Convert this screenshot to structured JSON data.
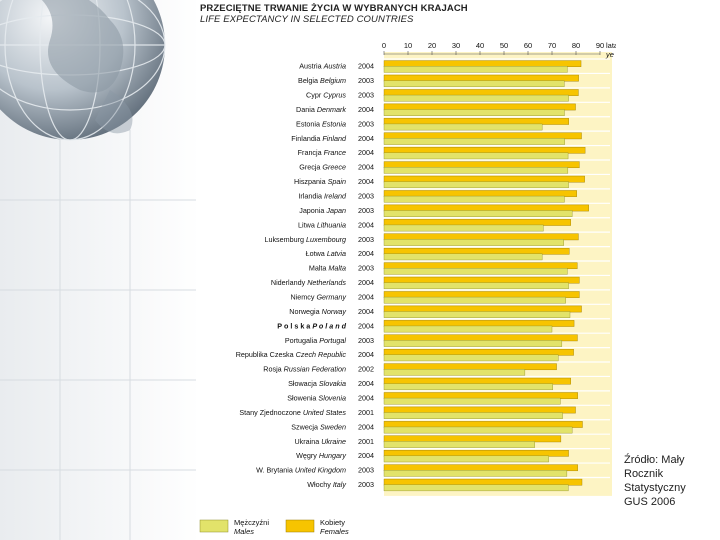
{
  "colors": {
    "males": "#e2e36a",
    "females": "#f7c400",
    "plot_bg": "#fdf4c4",
    "row_bg": "#ffffff"
  },
  "header": {
    "title_pl": "PRZECIĘTNE TRWANIE ŻYCIA W WYBRANYCH KRAJACH",
    "title_en": "LIFE EXPECTANCY IN SELECTED COUNTRIES"
  },
  "source": {
    "line1": "Źródło: Mały",
    "line2": "Rocznik",
    "line3": "Statystyczny",
    "line4": "GUS 2006"
  },
  "chart_data": {
    "type": "bar",
    "orientation": "horizontal",
    "title": "PRZECIĘTNE TRWANIE ŻYCIA W WYBRANYCH KRAJACH / LIFE EXPECTANCY IN SELECTED COUNTRIES",
    "xlim": [
      0,
      90
    ],
    "x_ticks": [
      "0",
      "10",
      "20",
      "30",
      "40",
      "50",
      "60",
      "70",
      "80",
      "90"
    ],
    "x_unit": "lata",
    "x_unit_en": "ye",
    "series_names": [
      "Mężczyźni",
      "Kobiety"
    ],
    "series_names_en": [
      "Males",
      "Females"
    ],
    "countries": [
      {
        "pl": "Austria",
        "en": "Austria",
        "year": "2004",
        "males": 76.4,
        "females": 82.1
      },
      {
        "pl": "Belgia",
        "en": "Belgium",
        "year": "2003",
        "males": 75.1,
        "females": 81.1
      },
      {
        "pl": "Cypr",
        "en": "Cyprus",
        "year": "2003",
        "males": 76.9,
        "females": 81.0
      },
      {
        "pl": "Dania",
        "en": "Denmark",
        "year": "2004",
        "males": 75.2,
        "females": 79.8
      },
      {
        "pl": "Estonia",
        "en": "Estonia",
        "year": "2003",
        "males": 65.9,
        "females": 77.0
      },
      {
        "pl": "Finlandia",
        "en": "Finland",
        "year": "2004",
        "males": 75.3,
        "females": 82.3
      },
      {
        "pl": "Francja",
        "en": "France",
        "year": "2004",
        "males": 76.7,
        "females": 83.8
      },
      {
        "pl": "Grecja",
        "en": "Greece",
        "year": "2004",
        "males": 76.6,
        "females": 81.4
      },
      {
        "pl": "Hiszpania",
        "en": "Spain",
        "year": "2004",
        "males": 76.9,
        "females": 83.6
      },
      {
        "pl": "Irlandia",
        "en": "Ireland",
        "year": "2003",
        "males": 75.2,
        "females": 80.3
      },
      {
        "pl": "Japonia",
        "en": "Japan",
        "year": "2003",
        "males": 78.4,
        "females": 85.3
      },
      {
        "pl": "Litwa",
        "en": "Lithuania",
        "year": "2004",
        "males": 66.4,
        "females": 77.8
      },
      {
        "pl": "Luksemburg",
        "en": "Luxembourg",
        "year": "2003",
        "males": 74.9,
        "females": 81.0
      },
      {
        "pl": "Łotwa",
        "en": "Latvia",
        "year": "2004",
        "males": 65.9,
        "females": 77.2
      },
      {
        "pl": "Malta",
        "en": "Malta",
        "year": "2003",
        "males": 76.4,
        "females": 80.5
      },
      {
        "pl": "Niderlandy",
        "en": "Netherlands",
        "year": "2004",
        "males": 76.9,
        "females": 81.4
      },
      {
        "pl": "Niemcy",
        "en": "Germany",
        "year": "2004",
        "males": 75.7,
        "females": 81.4
      },
      {
        "pl": "Norwegia",
        "en": "Norway",
        "year": "2004",
        "males": 77.5,
        "females": 82.3
      },
      {
        "pl": "P o l s k a",
        "en": "P o l a n d",
        "year": "2004",
        "males": 70.0,
        "females": 79.2
      },
      {
        "pl": "Portugalia",
        "en": "Portugal",
        "year": "2003",
        "males": 74.1,
        "females": 80.6
      },
      {
        "pl": "Republika Czeska",
        "en": "Czech Republic",
        "year": "2004",
        "males": 72.6,
        "females": 79.0
      },
      {
        "pl": "Rosja",
        "en": "Russian Federation",
        "year": "2002",
        "males": 58.7,
        "females": 71.9
      },
      {
        "pl": "Słowacja",
        "en": "Slovakia",
        "year": "2004",
        "males": 70.3,
        "females": 77.8
      },
      {
        "pl": "Słowenia",
        "en": "Slovenia",
        "year": "2004",
        "males": 73.5,
        "females": 80.7
      },
      {
        "pl": "Stany Zjednoczone",
        "en": "United States",
        "year": "2001",
        "males": 74.4,
        "females": 79.8
      },
      {
        "pl": "Szwecja",
        "en": "Sweden",
        "year": "2004",
        "males": 78.4,
        "females": 82.7
      },
      {
        "pl": "Ukraina",
        "en": "Ukraine",
        "year": "2001",
        "males": 62.8,
        "females": 73.7
      },
      {
        "pl": "Węgry",
        "en": "Hungary",
        "year": "2004",
        "males": 68.6,
        "females": 76.9
      },
      {
        "pl": "W. Brytania",
        "en": "United Kingdom",
        "year": "2003",
        "males": 76.2,
        "females": 80.7
      },
      {
        "pl": "Włochy",
        "en": "Italy",
        "year": "2003",
        "males": 76.8,
        "females": 82.5
      }
    ]
  }
}
